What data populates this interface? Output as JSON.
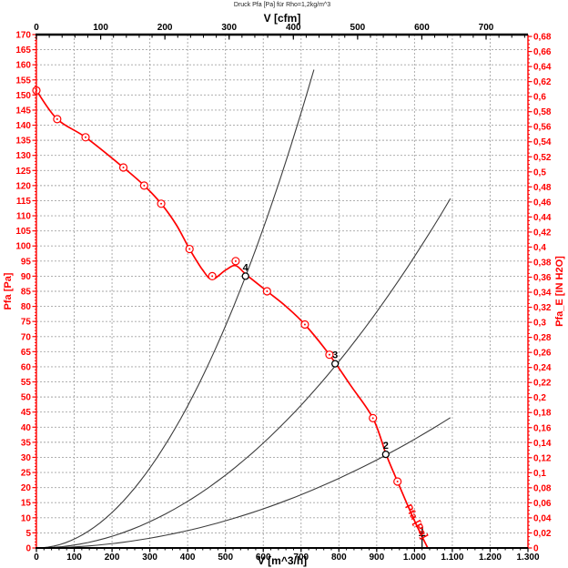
{
  "header": {
    "title": "Druck Pfa [Pa] für Rho=1,2kg/m^3"
  },
  "chart_data": {
    "type": "line",
    "title": "Druck Pfa [Pa] für Rho=1,2kg/m^3",
    "grid": "on",
    "axes": {
      "bottom": {
        "label": "V [m^3/h]",
        "min": 0,
        "max": 1300,
        "major": 100,
        "minor": 20,
        "tick_labels": [
          "0",
          "100",
          "200",
          "300",
          "400",
          "500",
          "600",
          "700",
          "800",
          "900",
          "1.000",
          "1.100",
          "1.200",
          "1.300"
        ]
      },
      "top": {
        "label": "V [cfm]",
        "min": 0,
        "major": 100,
        "minor": 20,
        "unit_to_m3h": 1.699,
        "tick_labels": [
          "0",
          "100",
          "200",
          "300",
          "400",
          "500",
          "600",
          "700"
        ]
      },
      "left": {
        "label": "Pfa [Pa]",
        "min": 0,
        "max": 170,
        "major": 5,
        "minor": 1,
        "tick_labels": [
          "0",
          "5",
          "10",
          "15",
          "20",
          "25",
          "30",
          "35",
          "40",
          "45",
          "50",
          "55",
          "60",
          "65",
          "70",
          "75",
          "80",
          "85",
          "90",
          "95",
          "100",
          "105",
          "110",
          "115",
          "120",
          "125",
          "130",
          "135",
          "140",
          "145",
          "150",
          "155",
          "160",
          "165",
          "170"
        ]
      },
      "right": {
        "label": "Pfa_E [IN H2O]",
        "min": 0,
        "max": 0.68,
        "major": 0.02,
        "minor": 0.005,
        "unit_to_pa": 249.089,
        "tick_labels": [
          "0",
          "0,02",
          "0,04",
          "0,06",
          "0,08",
          "0,1",
          "0,12",
          "0,14",
          "0,16",
          "0,18",
          "0,2",
          "0,22",
          "0,24",
          "0,26",
          "0,28",
          "0,3",
          "0,32",
          "0,34",
          "0,36",
          "0,38",
          "0,4",
          "0,42",
          "0,44",
          "0,46",
          "0,48",
          "0,5",
          "0,52",
          "0,54",
          "0,56",
          "0,58",
          "0,6",
          "0,62",
          "0,64",
          "0,66",
          "0,68"
        ]
      }
    },
    "fan_curve": {
      "name": "Pfa [Pa]",
      "curve_label": {
        "text": "Pfa [Pa]",
        "v": 1002,
        "p": 10,
        "angle_deg": 62
      },
      "points": [
        [
          0,
          151.5
        ],
        [
          55,
          142
        ],
        [
          130,
          136
        ],
        [
          230,
          126
        ],
        [
          285,
          120
        ],
        [
          330,
          114
        ],
        [
          370,
          107
        ],
        [
          405,
          99
        ],
        [
          440,
          92
        ],
        [
          465,
          89
        ],
        [
          500,
          92
        ],
        [
          527,
          93.5
        ],
        [
          555,
          90.5
        ],
        [
          610,
          85
        ],
        [
          660,
          80
        ],
        [
          710,
          74
        ],
        [
          775,
          64
        ],
        [
          830,
          54
        ],
        [
          890,
          43
        ],
        [
          925,
          31
        ],
        [
          955,
          22
        ],
        [
          1000,
          9
        ],
        [
          1035,
          0
        ]
      ],
      "marker_points": [
        [
          0,
          151.5
        ],
        [
          55,
          142
        ],
        [
          130,
          136
        ],
        [
          230,
          126
        ],
        [
          285,
          120
        ],
        [
          330,
          114
        ],
        [
          405,
          99
        ],
        [
          465,
          90
        ],
        [
          527,
          95
        ],
        [
          610,
          85
        ],
        [
          710,
          74
        ],
        [
          775,
          64
        ],
        [
          890,
          43
        ],
        [
          955,
          22
        ]
      ]
    },
    "system_curves": [
      {
        "name": "system-curve-steep",
        "k": 0.000294,
        "v_end": 734
      },
      {
        "name": "system-curve-middle",
        "k": 9.65e-05,
        "v_end": 1095
      },
      {
        "name": "system-curve-shallow",
        "k": 3.6e-05,
        "v_end": 1095
      }
    ],
    "operating_points": [
      {
        "label": "1",
        "v": 1020,
        "p": 2,
        "marker": "ibeam"
      },
      {
        "label": "2",
        "v": 924,
        "p": 31,
        "marker": "circle"
      },
      {
        "label": "3",
        "v": 790,
        "p": 61,
        "marker": "circle"
      },
      {
        "label": "4",
        "v": 553,
        "p": 90,
        "marker": "circle"
      }
    ],
    "colors": {
      "curve": "#ff0000",
      "axis_red": "#ff0000",
      "axis_black": "#000000",
      "system_curve": "#3c3c3c",
      "grid": "#a4a4a4",
      "op_marker": "#000000",
      "title": "#222222"
    }
  }
}
